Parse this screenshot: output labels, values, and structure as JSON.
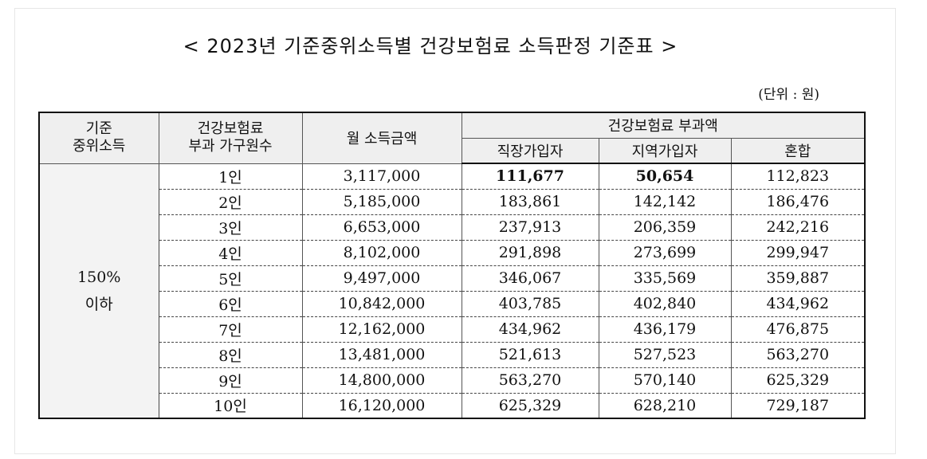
{
  "title": "< 2023년 기준중위소득별 건강보험료 소득판정 기준표 >",
  "unit": "(단위 : 원)",
  "headers": {
    "basis_line1": "기준",
    "basis_line2": "중위소득",
    "household_line1": "건강보험료",
    "household_line2": "부과 가구원수",
    "income": "월 소득금액",
    "premium_group": "건강보험료 부과액",
    "workplace": "직장가입자",
    "regional": "지역가입자",
    "mixed": "혼합"
  },
  "group": {
    "line1": "150%",
    "line2": "이하"
  },
  "rows": [
    {
      "size": "1인",
      "income": "3,117,000",
      "workplace": "111,677",
      "regional": "50,654",
      "mixed": "112,823"
    },
    {
      "size": "2인",
      "income": "5,185,000",
      "workplace": "183,861",
      "regional": "142,142",
      "mixed": "186,476"
    },
    {
      "size": "3인",
      "income": "6,653,000",
      "workplace": "237,913",
      "regional": "206,359",
      "mixed": "242,216"
    },
    {
      "size": "4인",
      "income": "8,102,000",
      "workplace": "291,898",
      "regional": "273,699",
      "mixed": "299,947"
    },
    {
      "size": "5인",
      "income": "9,497,000",
      "workplace": "346,067",
      "regional": "335,569",
      "mixed": "359,887"
    },
    {
      "size": "6인",
      "income": "10,842,000",
      "workplace": "403,785",
      "regional": "402,840",
      "mixed": "434,962"
    },
    {
      "size": "7인",
      "income": "12,162,000",
      "workplace": "434,962",
      "regional": "436,179",
      "mixed": "476,875"
    },
    {
      "size": "8인",
      "income": "13,481,000",
      "workplace": "521,613",
      "regional": "527,523",
      "mixed": "563,270"
    },
    {
      "size": "9인",
      "income": "14,800,000",
      "workplace": "563,270",
      "regional": "570,140",
      "mixed": "625,329"
    },
    {
      "size": "10인",
      "income": "16,120,000",
      "workplace": "625,329",
      "regional": "628,210",
      "mixed": "729,187"
    }
  ]
}
